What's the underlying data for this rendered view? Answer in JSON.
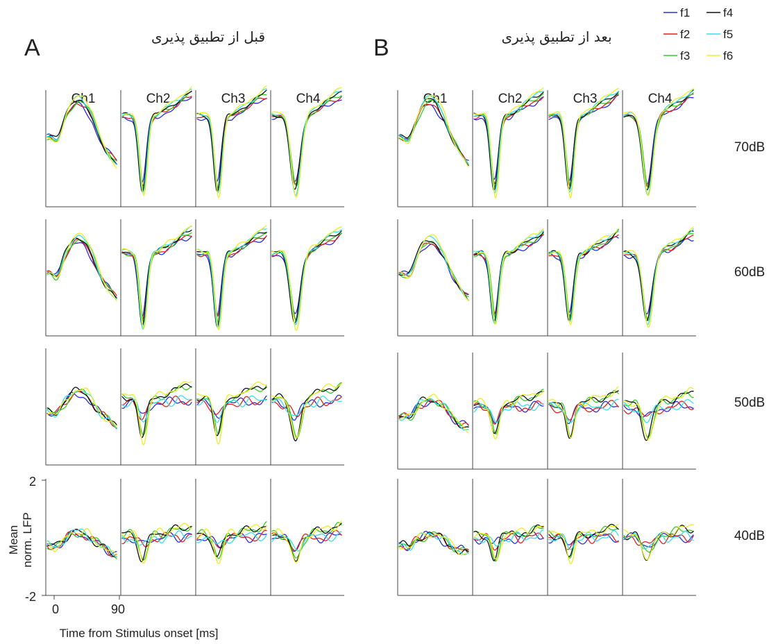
{
  "chart_data": {
    "type": "line",
    "panels": [
      {
        "letter": "A",
        "title": "قبل از تطبیق پذیری"
      },
      {
        "letter": "B",
        "title": "بعد از تطبیق پذیری"
      }
    ],
    "channels": [
      "Ch1",
      "Ch2",
      "Ch3",
      "Ch4"
    ],
    "levels": [
      "70dB",
      "60dB",
      "50dB",
      "40dB"
    ],
    "ylabel_line1": "Mean",
    "ylabel_line2": "norm. LFP",
    "xlabel": "Time from Stimulus onset [ms]",
    "yticks": [
      "2",
      "-2"
    ],
    "xticks": [
      "0",
      "90"
    ],
    "ylim": [
      -2,
      2
    ],
    "xlim": [
      -10,
      90
    ],
    "series": [
      {
        "name": "f1",
        "color": "#2b2bd6"
      },
      {
        "name": "f2",
        "color": "#e02020"
      },
      {
        "name": "f3",
        "color": "#33cc22"
      },
      {
        "name": "f4",
        "color": "#111111"
      },
      {
        "name": "f5",
        "color": "#33e0e8"
      },
      {
        "name": "f6",
        "color": "#eded22"
      }
    ],
    "waveform_shapes": {
      "Ch1": "positive peak near 35 ms",
      "Ch2": "negative trough near 20 ms",
      "Ch3": "negative trough near 20 ms",
      "Ch4": "negative trough near 25 ms"
    }
  }
}
